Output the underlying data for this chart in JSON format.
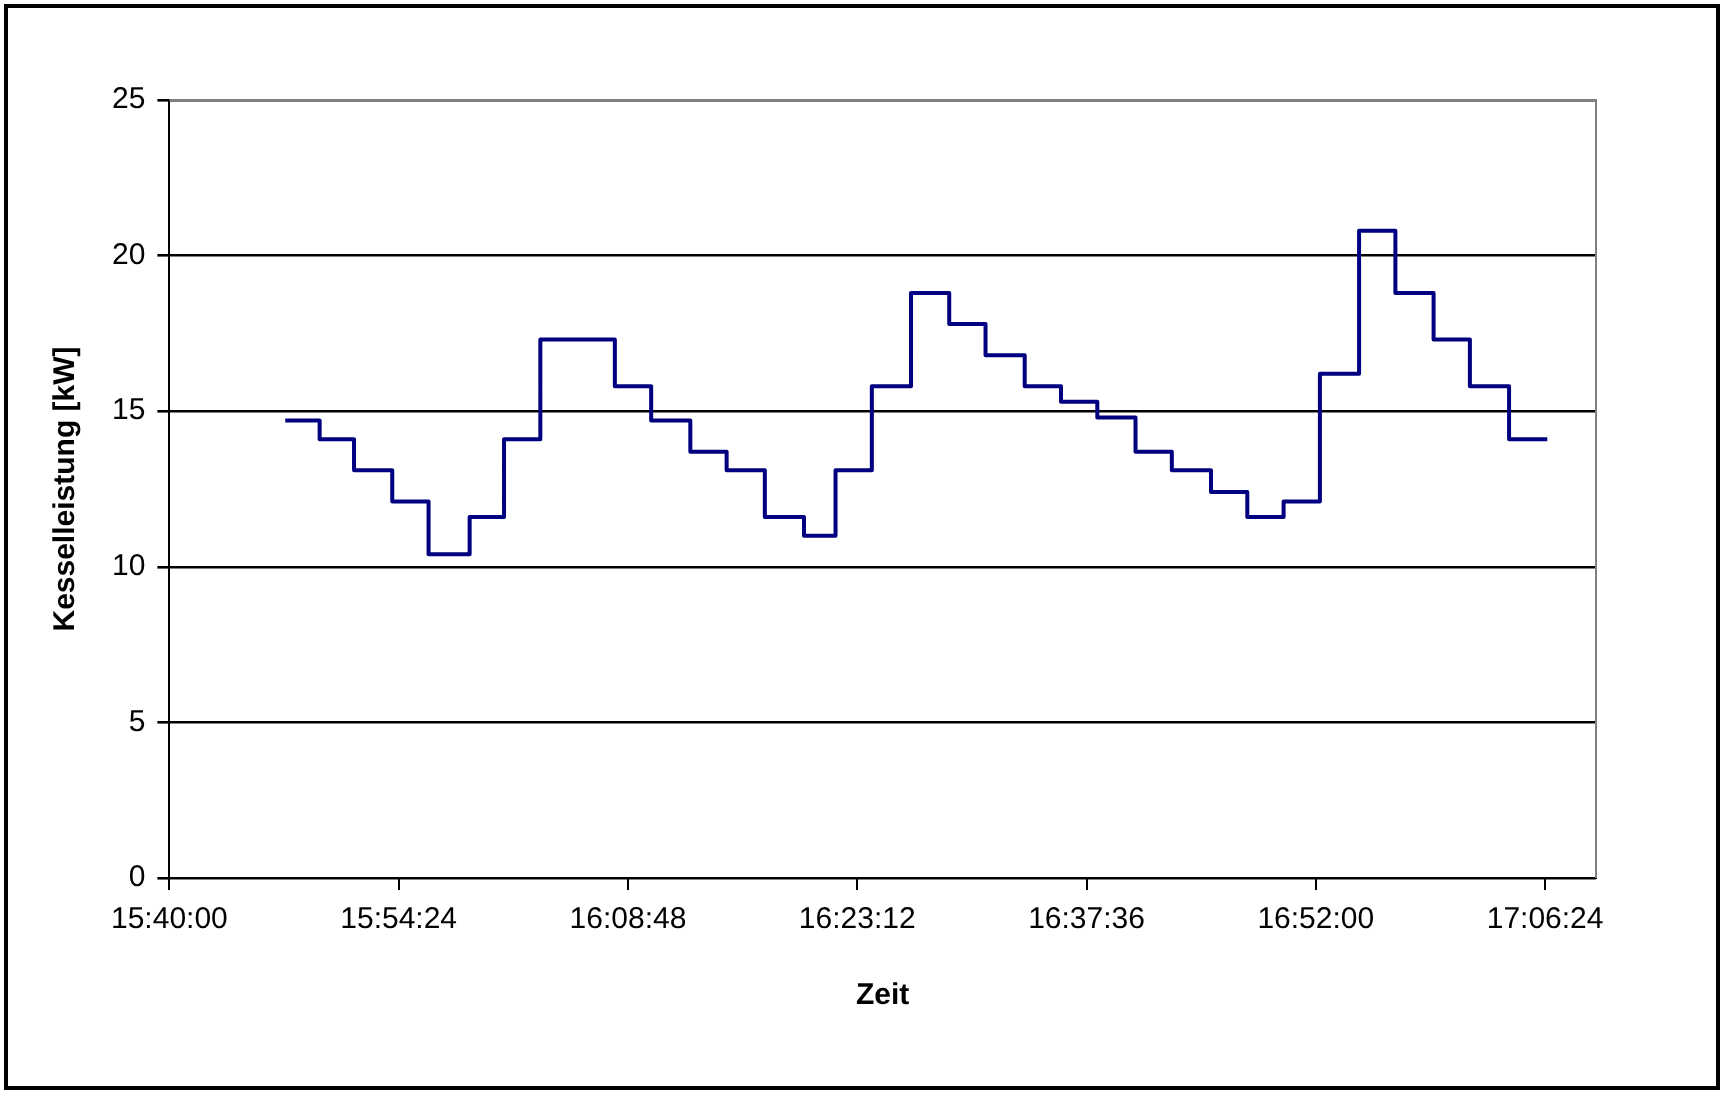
{
  "chart_data": {
    "type": "step",
    "xlabel": "Zeit",
    "ylabel": "Kesselleistung [kW]",
    "x": [
      15.788,
      15.824,
      15.86,
      15.9,
      15.938,
      15.981,
      16.017,
      16.055,
      16.133,
      16.171,
      16.212,
      16.25,
      16.29,
      16.331,
      16.364,
      16.402,
      16.443,
      16.483,
      16.521,
      16.562,
      16.6,
      16.638,
      16.678,
      16.716,
      16.757,
      16.795,
      16.833,
      16.871,
      16.912,
      16.95,
      16.99,
      17.028,
      17.069,
      17.109
    ],
    "series": [
      {
        "color": "#000080",
        "values": [
          14.7,
          14.1,
          13.1,
          12.1,
          10.4,
          11.6,
          14.1,
          17.3,
          15.8,
          14.7,
          13.7,
          13.1,
          11.6,
          11,
          13.1,
          15.8,
          18.8,
          17.8,
          16.8,
          15.8,
          15.3,
          14.8,
          13.7,
          13.1,
          12.4,
          11.6,
          12.1,
          16.2,
          20.8,
          18.8,
          17.3,
          15.8,
          14.1,
          14.1
        ]
      }
    ],
    "xlim": [
      15.6667,
      17.16
    ],
    "xticks": [
      {
        "value": 15.6667,
        "label": "15:40:00"
      },
      {
        "value": 15.9067,
        "label": "15:54:24"
      },
      {
        "value": 16.1467,
        "label": "16:08:48"
      },
      {
        "value": 16.3867,
        "label": "16:23:12"
      },
      {
        "value": 16.6267,
        "label": "16:37:36"
      },
      {
        "value": 16.8667,
        "label": "16:52:00"
      },
      {
        "value": 17.1067,
        "label": "17:06:24"
      }
    ],
    "ylim": [
      0,
      25
    ],
    "yticks": [
      0,
      5,
      10,
      15,
      20,
      25
    ],
    "grid": "y",
    "legend": false,
    "marker": "none",
    "line_style": "solid"
  }
}
